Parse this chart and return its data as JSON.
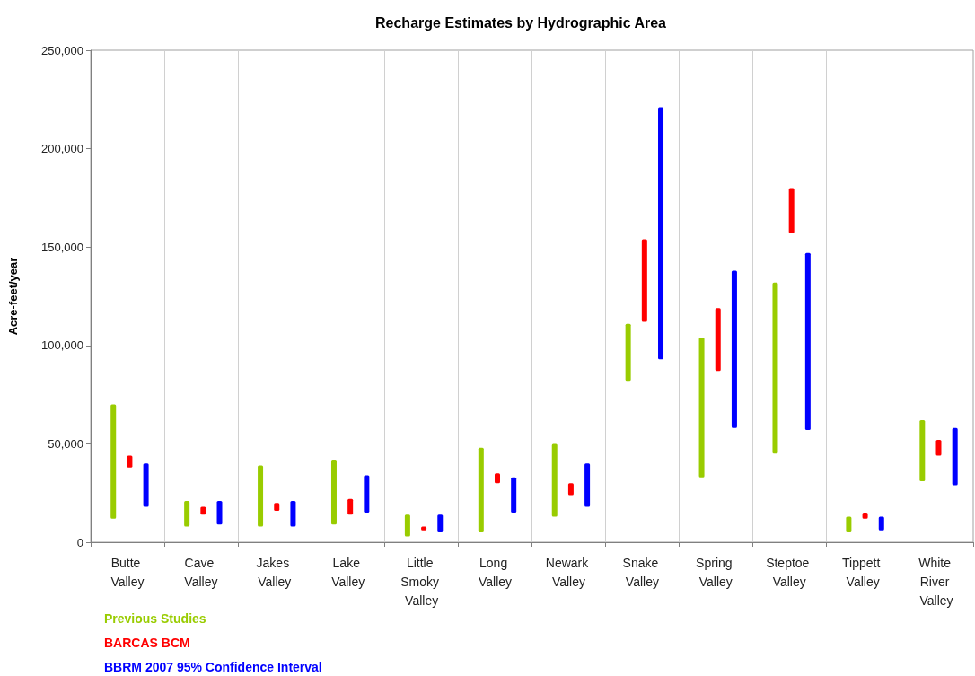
{
  "chart_data": {
    "type": "bar",
    "title": "Recharge Estimates by Hydrographic Area",
    "ylabel": "Acre-feet/year",
    "categories": [
      "Butte Valley",
      "Cave Valley",
      "Jakes Valley",
      "Lake Valley",
      "Little Smoky Valley",
      "Long Valley",
      "Newark Valley",
      "Snake Valley",
      "Spring Valley",
      "Steptoe Valley",
      "Tippett Valley",
      "White River Valley"
    ],
    "series": [
      {
        "name": "Previous Studies",
        "color": "#99cc00",
        "base": [
          12000,
          8000,
          8000,
          9000,
          3000,
          5000,
          13000,
          82000,
          33000,
          45000,
          5000,
          31000
        ],
        "values": [
          58000,
          13000,
          31000,
          33000,
          11000,
          43000,
          37000,
          29000,
          71000,
          87000,
          8000,
          31000
        ]
      },
      {
        "name": "BARCAS BCM",
        "color": "#ff0000",
        "base": [
          38000,
          14000,
          16000,
          14000,
          6000,
          30000,
          24000,
          112000,
          87000,
          157000,
          12000,
          44000
        ],
        "values": [
          6000,
          4000,
          4000,
          8000,
          2000,
          5000,
          6000,
          42000,
          32000,
          23000,
          3000,
          8000
        ]
      },
      {
        "name": "BBRM 2007 95% Confidence Interval",
        "color": "#0000ff",
        "base": [
          18000,
          9000,
          8000,
          15000,
          5000,
          15000,
          18000,
          93000,
          58000,
          57000,
          6000,
          29000
        ],
        "values": [
          22000,
          12000,
          13000,
          19000,
          9000,
          18000,
          22000,
          128000,
          80000,
          90000,
          7000,
          29000
        ]
      }
    ],
    "ylim": [
      0,
      250000
    ],
    "yticks": [
      0,
      {
        "value": 50000,
        "label": "50,000"
      },
      {
        "value": 100000,
        "label": "100,000"
      },
      {
        "value": 150000,
        "label": "150,000"
      },
      {
        "value": 200000,
        "label": "200,000"
      },
      {
        "value": 250000,
        "label": "250,000"
      }
    ],
    "grid": "x",
    "legend": "bottom left"
  }
}
